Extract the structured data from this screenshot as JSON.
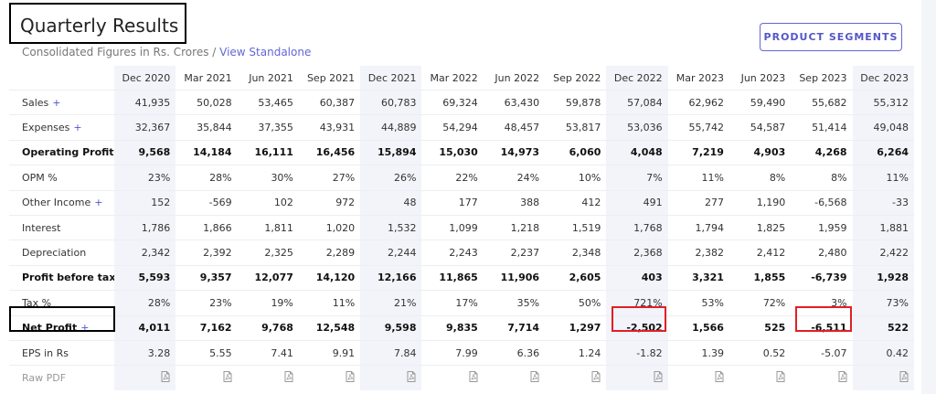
{
  "header": {
    "title": "Quarterly Results",
    "subtitle": "Consolidated Figures in Rs. Crores /",
    "link": "View Standalone",
    "button": "PRODUCT SEGMENTS"
  },
  "table": {
    "columns": [
      "Dec 2020",
      "Mar 2021",
      "Jun 2021",
      "Sep 2021",
      "Dec 2021",
      "Mar 2022",
      "Jun 2022",
      "Sep 2022",
      "Dec 2022",
      "Mar 2023",
      "Jun 2023",
      "Sep 2023",
      "Dec 2023"
    ],
    "rows": [
      {
        "label": "Sales",
        "toggle": "+",
        "values": [
          "41,935",
          "50,028",
          "53,465",
          "60,387",
          "60,783",
          "69,324",
          "63,430",
          "59,878",
          "57,084",
          "62,962",
          "59,490",
          "55,682",
          "55,312"
        ]
      },
      {
        "label": "Expenses",
        "toggle": "+",
        "values": [
          "32,367",
          "35,844",
          "37,355",
          "43,931",
          "44,889",
          "54,294",
          "48,457",
          "53,817",
          "53,036",
          "55,742",
          "54,587",
          "51,414",
          "49,048"
        ]
      },
      {
        "label": "Operating Profit",
        "bold": true,
        "values": [
          "9,568",
          "14,184",
          "16,111",
          "16,456",
          "15,894",
          "15,030",
          "14,973",
          "6,060",
          "4,048",
          "7,219",
          "4,903",
          "4,268",
          "6,264"
        ]
      },
      {
        "label": "OPM %",
        "values": [
          "23%",
          "28%",
          "30%",
          "27%",
          "26%",
          "22%",
          "24%",
          "10%",
          "7%",
          "11%",
          "8%",
          "8%",
          "11%"
        ]
      },
      {
        "label": "Other Income",
        "toggle": "+",
        "values": [
          "152",
          "-569",
          "102",
          "972",
          "48",
          "177",
          "388",
          "412",
          "491",
          "277",
          "1,190",
          "-6,568",
          "-33"
        ]
      },
      {
        "label": "Interest",
        "values": [
          "1,786",
          "1,866",
          "1,811",
          "1,020",
          "1,532",
          "1,099",
          "1,218",
          "1,519",
          "1,768",
          "1,794",
          "1,825",
          "1,959",
          "1,881"
        ]
      },
      {
        "label": "Depreciation",
        "values": [
          "2,342",
          "2,392",
          "2,325",
          "2,289",
          "2,244",
          "2,243",
          "2,237",
          "2,348",
          "2,368",
          "2,382",
          "2,412",
          "2,480",
          "2,422"
        ]
      },
      {
        "label": "Profit before tax",
        "bold": true,
        "values": [
          "5,593",
          "9,357",
          "12,077",
          "14,120",
          "12,166",
          "11,865",
          "11,906",
          "2,605",
          "403",
          "3,321",
          "1,855",
          "-6,739",
          "1,928"
        ]
      },
      {
        "label": "Tax %",
        "values": [
          "28%",
          "23%",
          "19%",
          "11%",
          "21%",
          "17%",
          "35%",
          "50%",
          "721%",
          "53%",
          "72%",
          "3%",
          "73%"
        ]
      },
      {
        "label": "Net Profit",
        "toggle": "+",
        "bold": true,
        "values": [
          "4,011",
          "7,162",
          "9,768",
          "12,548",
          "9,598",
          "9,835",
          "7,714",
          "1,297",
          "-2,502",
          "1,566",
          "525",
          "-6,511",
          "522"
        ]
      },
      {
        "label": "EPS in Rs",
        "values": [
          "3.28",
          "5.55",
          "7.41",
          "9.91",
          "7.84",
          "7.99",
          "6.36",
          "1.24",
          "-1.82",
          "1.39",
          "0.52",
          "-5.07",
          "0.42"
        ]
      },
      {
        "label": "Raw PDF",
        "muted": true,
        "pdf": true
      }
    ]
  }
}
